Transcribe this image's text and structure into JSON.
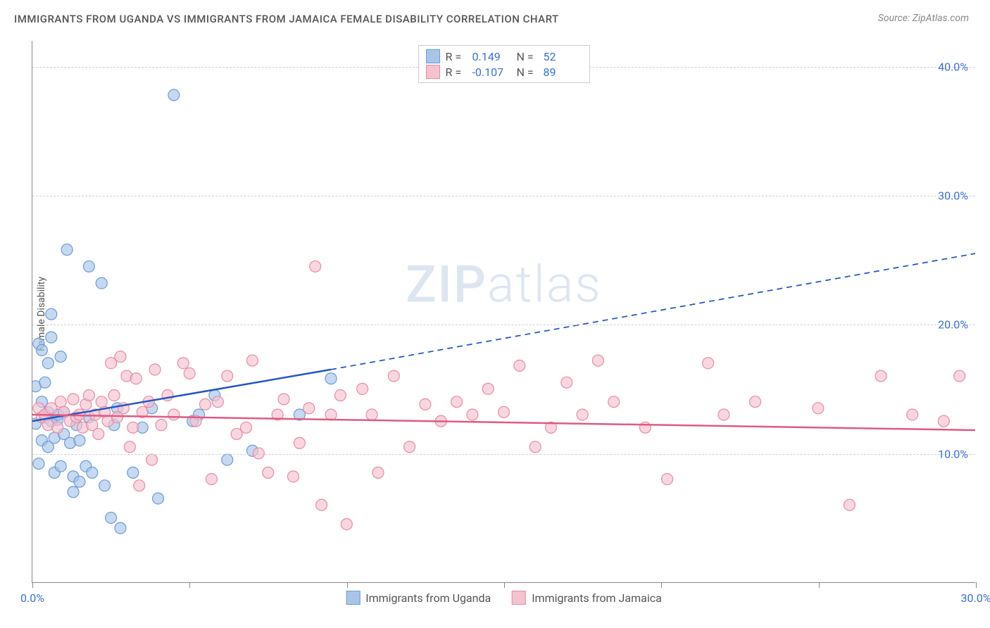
{
  "title": "IMMIGRANTS FROM UGANDA VS IMMIGRANTS FROM JAMAICA FEMALE DISABILITY CORRELATION CHART",
  "source": "Source: ZipAtlas.com",
  "watermark_bold": "ZIP",
  "watermark_light": "atlas",
  "chart": {
    "type": "scatter",
    "ylabel": "Female Disability",
    "xlim": [
      0,
      30
    ],
    "ylim": [
      0,
      42
    ],
    "y_ticks": [
      10,
      20,
      30,
      40
    ],
    "y_tick_labels": [
      "10.0%",
      "20.0%",
      "30.0%",
      "40.0%"
    ],
    "x_ticks": [
      0,
      5,
      10,
      15,
      20,
      25,
      30
    ],
    "x_tick_labels_visible": {
      "0": "0.0%",
      "30": "30.0%"
    },
    "background_color": "#ffffff",
    "grid_color": "#d0d0d0",
    "axis_color": "#888888",
    "tick_label_color": "#3a6fd8",
    "marker_radius": 8,
    "series": [
      {
        "name": "Immigrants from Uganda",
        "marker_fill": "#a8c5e8",
        "marker_stroke": "#6a9bd8",
        "marker_opacity": 0.65,
        "line_color": "#2456c4",
        "line_width": 2.5,
        "r_label": "R =",
        "r_value": "0.149",
        "n_label": "N =",
        "n_value": "52",
        "trend_start": [
          0,
          12.5
        ],
        "trend_solid_end": [
          9.5,
          16.5
        ],
        "trend_dash_end": [
          30,
          25.5
        ],
        "points": [
          [
            0.1,
            12.3
          ],
          [
            0.1,
            15.2
          ],
          [
            0.2,
            9.2
          ],
          [
            0.2,
            18.5
          ],
          [
            0.3,
            11.0
          ],
          [
            0.3,
            14.0
          ],
          [
            0.3,
            18.0
          ],
          [
            0.4,
            12.8
          ],
          [
            0.4,
            15.5
          ],
          [
            0.5,
            13.2
          ],
          [
            0.5,
            17.0
          ],
          [
            0.5,
            10.5
          ],
          [
            0.6,
            12.5
          ],
          [
            0.6,
            19.0
          ],
          [
            0.6,
            20.8
          ],
          [
            0.7,
            11.2
          ],
          [
            0.7,
            8.5
          ],
          [
            0.8,
            12.6
          ],
          [
            0.8,
            13.0
          ],
          [
            0.9,
            9.0
          ],
          [
            0.9,
            17.5
          ],
          [
            1.0,
            13.2
          ],
          [
            1.0,
            11.5
          ],
          [
            1.1,
            25.8
          ],
          [
            1.2,
            10.8
          ],
          [
            1.3,
            7.0
          ],
          [
            1.3,
            8.2
          ],
          [
            1.4,
            12.2
          ],
          [
            1.5,
            11.0
          ],
          [
            1.5,
            7.8
          ],
          [
            1.7,
            9.0
          ],
          [
            1.8,
            12.8
          ],
          [
            1.8,
            24.5
          ],
          [
            1.9,
            8.5
          ],
          [
            2.2,
            23.2
          ],
          [
            2.3,
            7.5
          ],
          [
            2.5,
            5.0
          ],
          [
            2.6,
            12.2
          ],
          [
            2.7,
            13.5
          ],
          [
            2.8,
            4.2
          ],
          [
            3.2,
            8.5
          ],
          [
            3.5,
            12.0
          ],
          [
            3.8,
            13.5
          ],
          [
            4.0,
            6.5
          ],
          [
            4.5,
            37.8
          ],
          [
            5.1,
            12.5
          ],
          [
            5.3,
            13.0
          ],
          [
            5.8,
            14.5
          ],
          [
            6.2,
            9.5
          ],
          [
            7.0,
            10.2
          ],
          [
            8.5,
            13.0
          ],
          [
            9.5,
            15.8
          ]
        ]
      },
      {
        "name": "Immigrants from Jamaica",
        "marker_fill": "#f5c2cf",
        "marker_stroke": "#e88ba3",
        "marker_opacity": 0.65,
        "line_color": "#e05a82",
        "line_width": 2.5,
        "r_label": "R =",
        "r_value": "-0.107",
        "n_label": "N =",
        "n_value": "89",
        "trend_start": [
          0,
          13.0
        ],
        "trend_solid_end": [
          30,
          11.8
        ],
        "trend_dash_end": null,
        "points": [
          [
            0.2,
            13.5
          ],
          [
            0.3,
            12.8
          ],
          [
            0.4,
            13.0
          ],
          [
            0.5,
            12.2
          ],
          [
            0.6,
            13.5
          ],
          [
            0.8,
            12.0
          ],
          [
            0.9,
            14.0
          ],
          [
            1.0,
            13.2
          ],
          [
            1.2,
            12.5
          ],
          [
            1.3,
            14.2
          ],
          [
            1.4,
            12.8
          ],
          [
            1.5,
            13.0
          ],
          [
            1.6,
            12.0
          ],
          [
            1.7,
            13.8
          ],
          [
            1.8,
            14.5
          ],
          [
            1.9,
            12.2
          ],
          [
            2.0,
            13.0
          ],
          [
            2.1,
            11.5
          ],
          [
            2.2,
            14.0
          ],
          [
            2.3,
            13.2
          ],
          [
            2.4,
            12.5
          ],
          [
            2.5,
            17.0
          ],
          [
            2.6,
            14.5
          ],
          [
            2.7,
            12.8
          ],
          [
            2.8,
            17.5
          ],
          [
            2.9,
            13.5
          ],
          [
            3.0,
            16.0
          ],
          [
            3.1,
            10.5
          ],
          [
            3.2,
            12.0
          ],
          [
            3.3,
            15.8
          ],
          [
            3.4,
            7.5
          ],
          [
            3.5,
            13.2
          ],
          [
            3.7,
            14.0
          ],
          [
            3.8,
            9.5
          ],
          [
            3.9,
            16.5
          ],
          [
            4.1,
            12.2
          ],
          [
            4.3,
            14.5
          ],
          [
            4.5,
            13.0
          ],
          [
            4.8,
            17.0
          ],
          [
            5.0,
            16.2
          ],
          [
            5.2,
            12.5
          ],
          [
            5.5,
            13.8
          ],
          [
            5.7,
            8.0
          ],
          [
            5.9,
            14.0
          ],
          [
            6.2,
            16.0
          ],
          [
            6.5,
            11.5
          ],
          [
            6.8,
            12.0
          ],
          [
            7.0,
            17.2
          ],
          [
            7.2,
            10.0
          ],
          [
            7.5,
            8.5
          ],
          [
            7.8,
            13.0
          ],
          [
            8.0,
            14.2
          ],
          [
            8.3,
            8.2
          ],
          [
            8.5,
            10.8
          ],
          [
            8.8,
            13.5
          ],
          [
            9.0,
            24.5
          ],
          [
            9.2,
            6.0
          ],
          [
            9.5,
            13.0
          ],
          [
            9.8,
            14.5
          ],
          [
            10.0,
            4.5
          ],
          [
            10.5,
            15.0
          ],
          [
            10.8,
            13.0
          ],
          [
            11.0,
            8.5
          ],
          [
            11.5,
            16.0
          ],
          [
            12.0,
            10.5
          ],
          [
            12.5,
            13.8
          ],
          [
            13.0,
            12.5
          ],
          [
            13.5,
            14.0
          ],
          [
            14.0,
            13.0
          ],
          [
            14.5,
            15.0
          ],
          [
            15.0,
            13.2
          ],
          [
            15.5,
            16.8
          ],
          [
            16.0,
            10.5
          ],
          [
            16.5,
            12.0
          ],
          [
            17.0,
            15.5
          ],
          [
            17.5,
            13.0
          ],
          [
            18.0,
            17.2
          ],
          [
            18.5,
            14.0
          ],
          [
            19.5,
            12.0
          ],
          [
            20.2,
            8.0
          ],
          [
            21.5,
            17.0
          ],
          [
            22.0,
            13.0
          ],
          [
            23.0,
            14.0
          ],
          [
            25.0,
            13.5
          ],
          [
            26.0,
            6.0
          ],
          [
            27.0,
            16.0
          ],
          [
            28.0,
            13.0
          ],
          [
            29.0,
            12.5
          ],
          [
            29.5,
            16.0
          ]
        ]
      }
    ],
    "bottom_legend": [
      {
        "swatch_fill": "#a8c5e8",
        "swatch_stroke": "#6a9bd8",
        "label": "Immigrants from Uganda"
      },
      {
        "swatch_fill": "#f5c2cf",
        "swatch_stroke": "#e88ba3",
        "label": "Immigrants from Jamaica"
      }
    ]
  }
}
